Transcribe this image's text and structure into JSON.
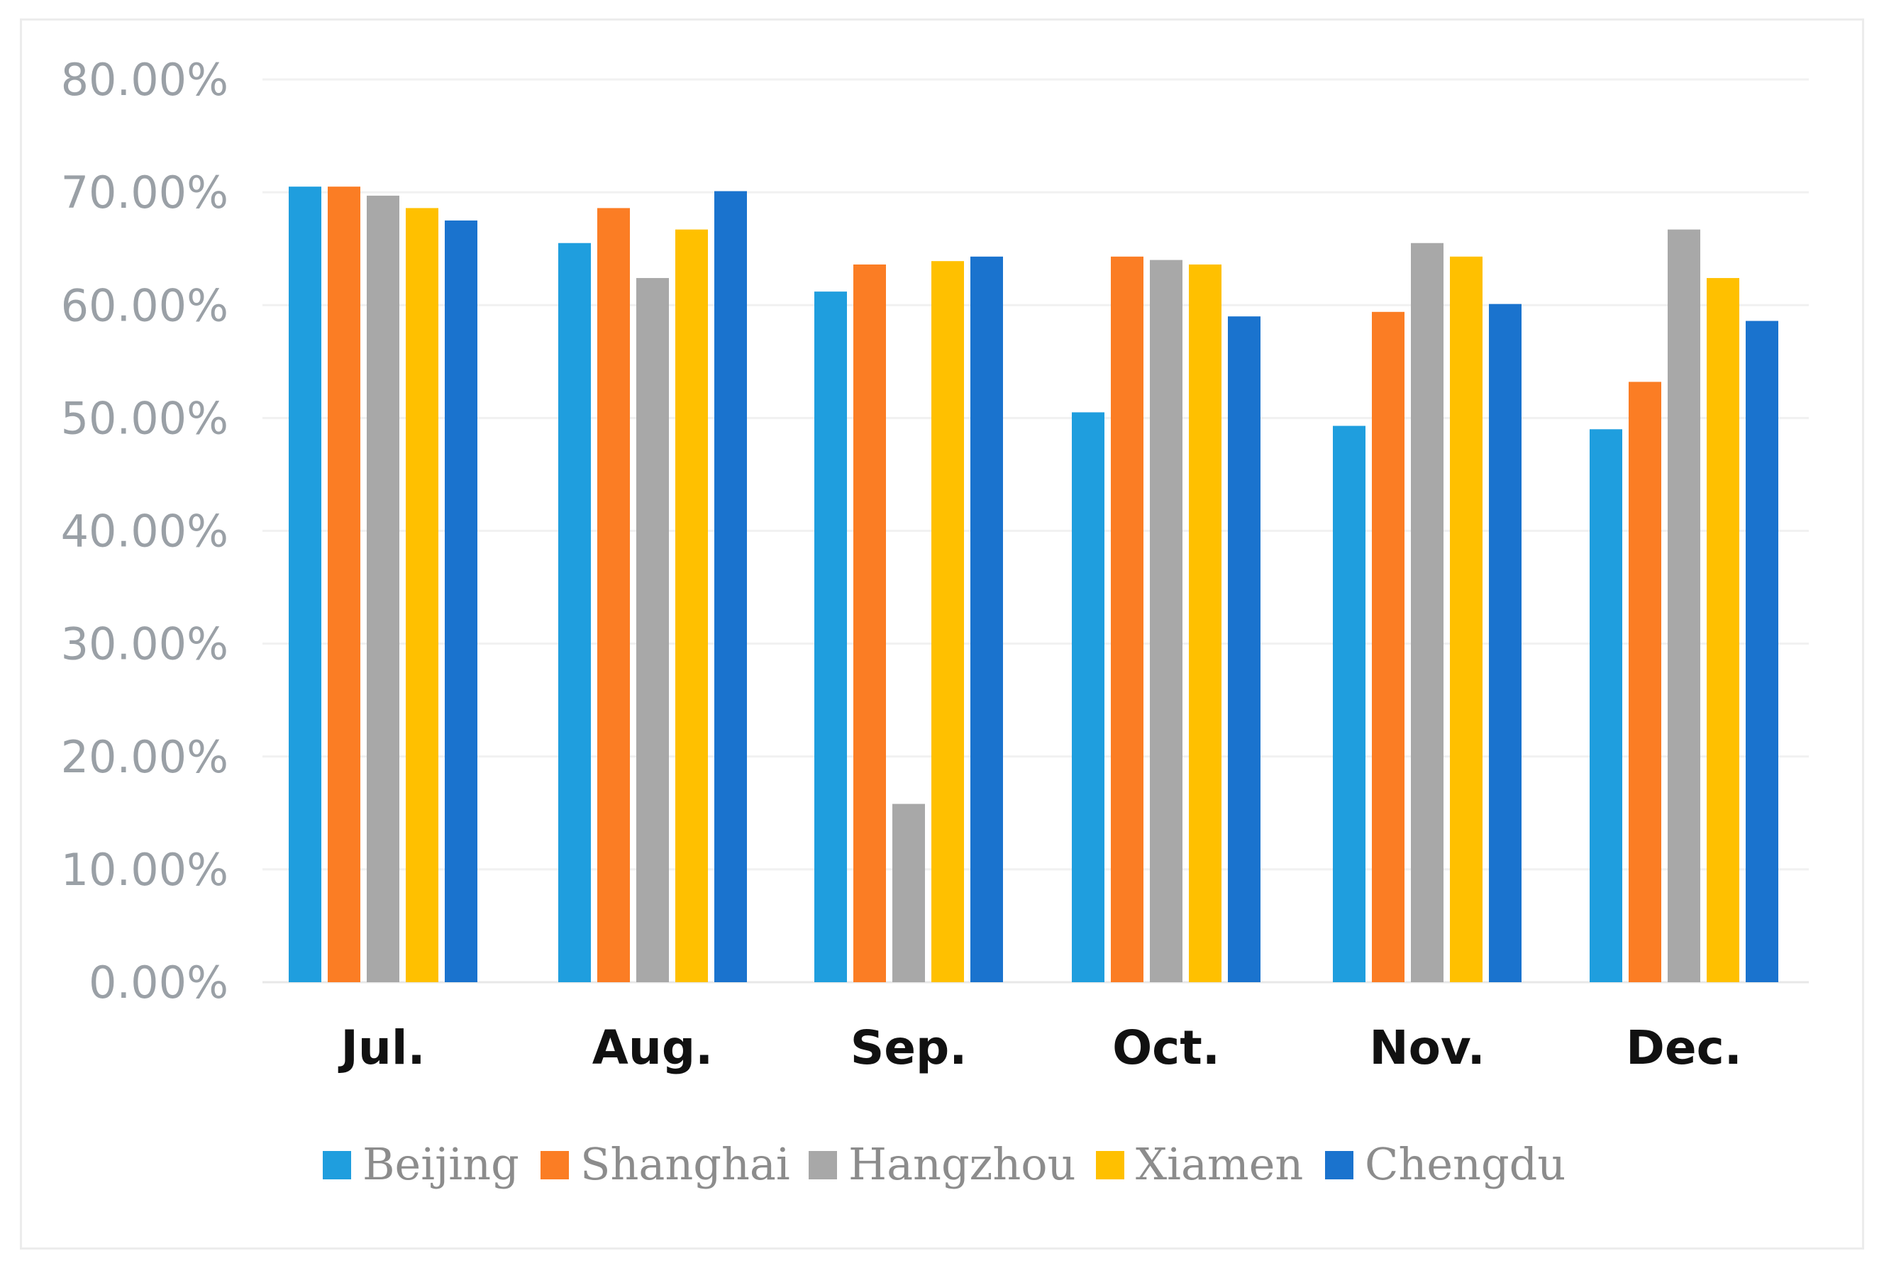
{
  "chart_data": {
    "type": "bar",
    "title": "",
    "xlabel": "",
    "ylabel": "",
    "ylim": [
      0,
      80
    ],
    "ytick_labels": [
      "0.00%",
      "10.00%",
      "20.00%",
      "30.00%",
      "40.00%",
      "50.00%",
      "60.00%",
      "70.00%",
      "80.00%"
    ],
    "ytick_values": [
      0,
      10,
      20,
      30,
      40,
      50,
      60,
      70,
      80
    ],
    "grid": true,
    "legend_position": "bottom",
    "categories": [
      "Jul.",
      "Aug.",
      "Sep.",
      "Oct.",
      "Nov.",
      "Dec."
    ],
    "series": [
      {
        "name": "Beijing",
        "color": "#1f9ede",
        "values": [
          70.5,
          65.5,
          61.2,
          50.5,
          49.3,
          49.0
        ]
      },
      {
        "name": "Shanghai",
        "color": "#fb7d24",
        "values": [
          70.5,
          68.6,
          63.6,
          64.3,
          59.4,
          53.2
        ]
      },
      {
        "name": "Hangzhou",
        "color": "#a8a8a8",
        "values": [
          69.7,
          62.4,
          15.8,
          64.0,
          65.5,
          66.7
        ]
      },
      {
        "name": "Xiamen",
        "color": "#ffc000",
        "values": [
          68.6,
          66.7,
          63.9,
          63.6,
          64.3,
          62.4
        ]
      },
      {
        "name": "Chengdu",
        "color": "#1a73ce",
        "values": [
          67.5,
          70.1,
          64.3,
          59.0,
          60.1,
          58.6
        ]
      }
    ]
  }
}
